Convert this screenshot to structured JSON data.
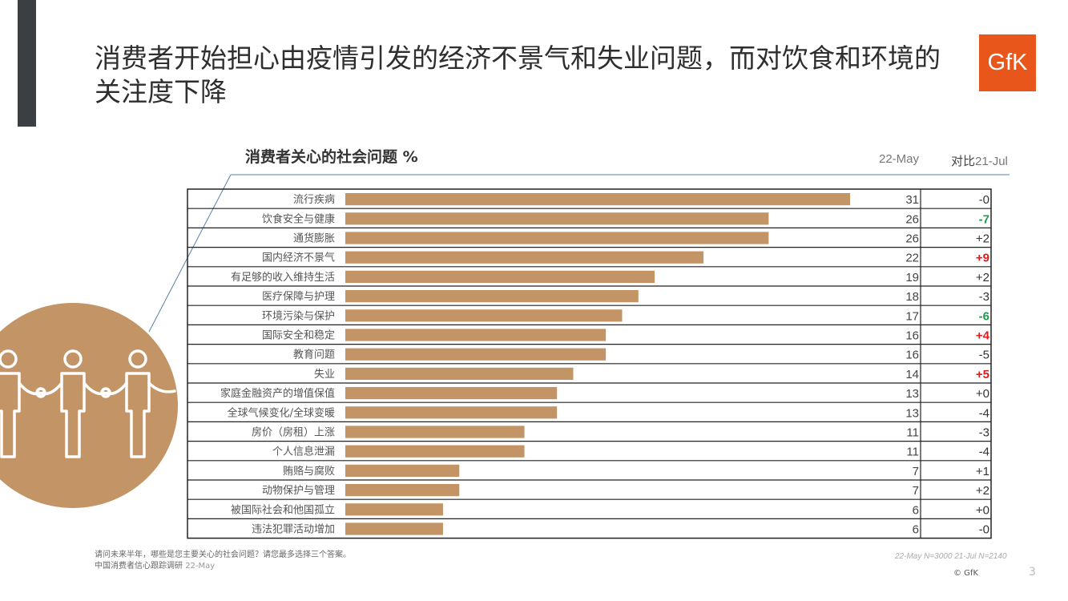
{
  "header": {
    "title": "消费者开始担心由疫情引发的经济不景气和失业问题，而对饮食和环境的关注度下降",
    "logo_text": "GfK"
  },
  "chart_data": {
    "type": "bar",
    "orientation": "horizontal",
    "title": "消费者关心的社会问题 %",
    "columns": {
      "value_label": "22-May",
      "change_label_main": "对比",
      "change_label_sub": "21-Jul"
    },
    "categories": [
      "流行疾病",
      "饮食安全与健康",
      "通货膨胀",
      "国内经济不景气",
      "有足够的收入维持生活",
      "医疗保障与护理",
      "环境污染与保护",
      "国际安全和稳定",
      "教育问题",
      "失业",
      "家庭金融资产的增值保值",
      "全球气候变化/全球变暖",
      "房价（房租）上涨",
      "个人信息泄漏",
      "贿赂与腐败",
      "动物保护与管理",
      "被国际社会和他国孤立",
      "违法犯罪活动增加"
    ],
    "values": [
      31,
      26,
      26,
      22,
      19,
      18,
      17,
      16,
      16,
      14,
      13,
      13,
      11,
      11,
      7,
      7,
      6,
      6
    ],
    "changes": [
      "-0",
      "-7",
      "+2",
      "+9",
      "+2",
      "-3",
      "-6",
      "+4",
      "-5",
      "+5",
      "+0",
      "-4",
      "-3",
      "-4",
      "+1",
      "+2",
      "+0",
      "-0"
    ],
    "change_colors": [
      "#333333",
      "#1a9a4a",
      "#333333",
      "#e01b1b",
      "#333333",
      "#333333",
      "#1a9a4a",
      "#e01b1b",
      "#333333",
      "#e01b1b",
      "#333333",
      "#333333",
      "#333333",
      "#333333",
      "#333333",
      "#333333",
      "#333333",
      "#333333"
    ],
    "change_bold": [
      false,
      true,
      false,
      true,
      false,
      false,
      true,
      true,
      false,
      true,
      false,
      false,
      false,
      false,
      false,
      false,
      false,
      false
    ],
    "xlim": [
      0,
      31
    ],
    "bar_color": "#c29466",
    "grid": false
  },
  "footer": {
    "question": "请问未来半年，哪些是您主要关心的社会问题？请您最多选择三个答案。",
    "source": "中国消费者信心跟踪调研",
    "source_date": "22-May",
    "sample": "22-May N=3000   21-Jul N=2140",
    "copyright": "© GfK",
    "page": "3"
  },
  "colors": {
    "accent": "#e8561b",
    "sidebar": "#3a3f44",
    "circle": "#c29466"
  }
}
